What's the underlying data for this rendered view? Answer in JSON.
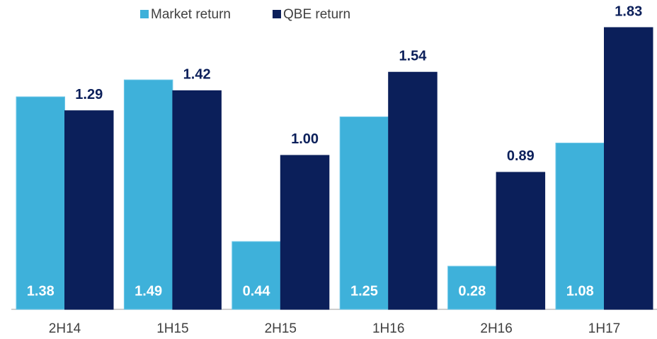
{
  "chart_data": {
    "type": "bar",
    "categories": [
      "2H14",
      "1H15",
      "2H15",
      "1H16",
      "2H16",
      "1H17"
    ],
    "series": [
      {
        "name": "Market return",
        "color": "#3eb1da",
        "values": [
          1.38,
          1.49,
          0.44,
          1.25,
          0.28,
          1.08
        ],
        "value_labels": [
          "1.38",
          "1.49",
          "0.44",
          "1.25",
          "0.28",
          "1.08"
        ]
      },
      {
        "name": "QBE return",
        "color": "#0b1f5a",
        "values": [
          1.29,
          1.42,
          1,
          1.54,
          0.89,
          1.83
        ],
        "value_labels": [
          "1.29",
          "1.42",
          "1.00",
          "1.54",
          "0.89",
          "1.83"
        ]
      }
    ],
    "ylim": [
      0,
      1.83
    ],
    "legend": "top"
  }
}
